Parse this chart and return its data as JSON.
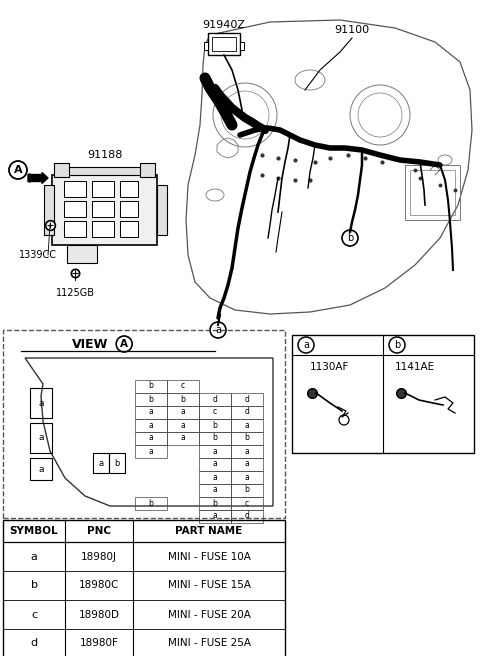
{
  "bg": "#ffffff",
  "parts": {
    "relay": "91940Z",
    "wiring": "91100",
    "jbox": "91188",
    "bolt1": "1339CC",
    "bolt2": "1125GB"
  },
  "connectors": {
    "a": "1130AF",
    "b": "1141AE"
  },
  "fuse_grid": [
    [
      "b",
      "c",
      "",
      ""
    ],
    [
      "b",
      "b",
      "d",
      "d"
    ],
    [
      "a",
      "a",
      "c",
      "d"
    ],
    [
      "a",
      "a",
      "b",
      "a"
    ],
    [
      "a",
      "a",
      "b",
      "b"
    ],
    [
      "a",
      "",
      "a",
      "a"
    ],
    [
      "",
      "",
      "a",
      "a"
    ],
    [
      "",
      "",
      "a",
      "a"
    ],
    [
      "",
      "",
      "a",
      "b"
    ],
    [
      "b",
      "",
      "b",
      "c"
    ],
    [
      "",
      "",
      "a",
      "d"
    ]
  ],
  "table_headers": [
    "SYMBOL",
    "PNC",
    "PART NAME"
  ],
  "table_rows": [
    [
      "a",
      "18980J",
      "MINI - FUSE 10A"
    ],
    [
      "b",
      "18980C",
      "MINI - FUSE 15A"
    ],
    [
      "c",
      "18980D",
      "MINI - FUSE 20A"
    ],
    [
      "d",
      "18980F",
      "MINI - FUSE 25A"
    ]
  ]
}
